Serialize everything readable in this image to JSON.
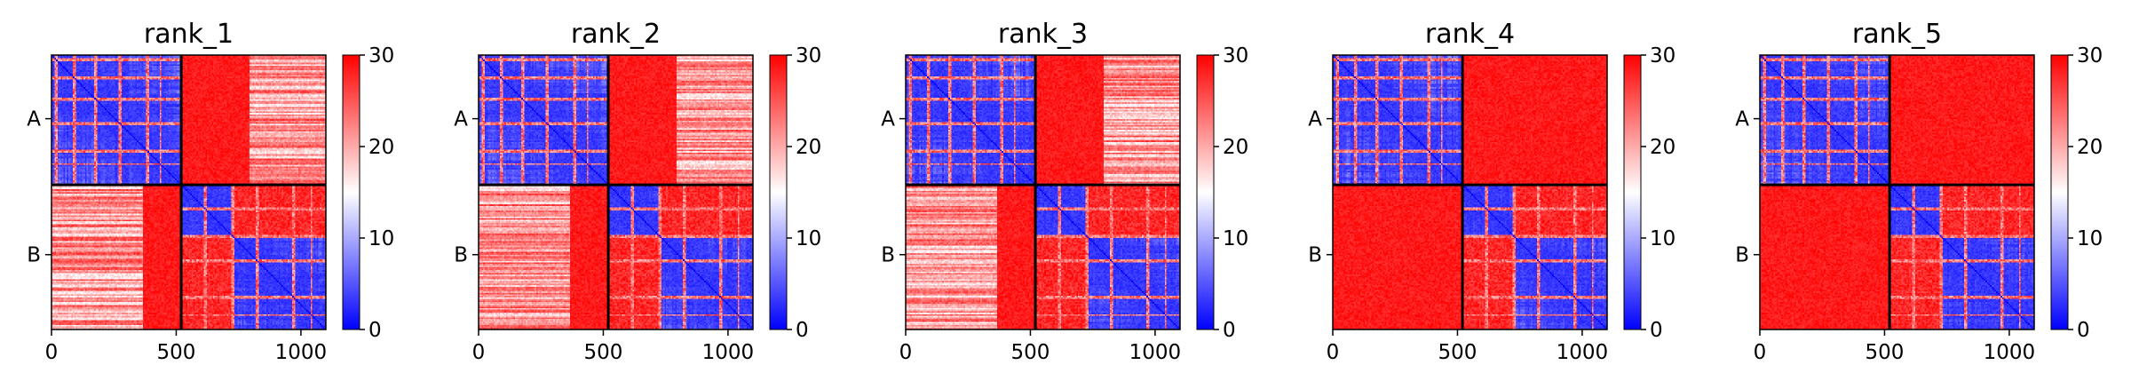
{
  "figure": {
    "colormap": {
      "low": "#0000ff",
      "mid": "#ffffff",
      "high": "#ff0000"
    }
  },
  "chart_data": [
    {
      "type": "heatmap",
      "title": "rank_1",
      "xlabel": "",
      "ylabel": "",
      "x_ticks": [
        "0",
        "500",
        "1000"
      ],
      "x_tick_values": [
        0,
        500,
        1000
      ],
      "xlim": [
        0,
        1100
      ],
      "ylim": [
        1100,
        0
      ],
      "y_tick_labels": [
        "A",
        "B"
      ],
      "y_tick_values": [
        255,
        800
      ],
      "chain_boundary": 520,
      "colorbar": {
        "min": 0,
        "max": 30,
        "ticks": [
          0,
          10,
          20,
          30
        ]
      },
      "blocks": {
        "AA": "low",
        "AB": "mostly high, mixed near residues 800-1100",
        "BA": "mostly high, mixed near residues 0-350",
        "BB": "low"
      }
    },
    {
      "type": "heatmap",
      "title": "rank_2",
      "xlabel": "",
      "ylabel": "",
      "x_ticks": [
        "0",
        "500",
        "1000"
      ],
      "x_tick_values": [
        0,
        500,
        1000
      ],
      "xlim": [
        0,
        1100
      ],
      "ylim": [
        1100,
        0
      ],
      "y_tick_labels": [
        "A",
        "B"
      ],
      "y_tick_values": [
        255,
        800
      ],
      "chain_boundary": 520,
      "colorbar": {
        "min": 0,
        "max": 30,
        "ticks": [
          0,
          10,
          20,
          30
        ]
      },
      "blocks": {
        "AA": "low",
        "AB": "mostly high, mixed near residues 800-1100",
        "BA": "mostly high, mixed near residues 0-350",
        "BB": "low"
      }
    },
    {
      "type": "heatmap",
      "title": "rank_3",
      "xlabel": "",
      "ylabel": "",
      "x_ticks": [
        "0",
        "500",
        "1000"
      ],
      "x_tick_values": [
        0,
        500,
        1000
      ],
      "xlim": [
        0,
        1100
      ],
      "ylim": [
        1100,
        0
      ],
      "y_tick_labels": [
        "A",
        "B"
      ],
      "y_tick_values": [
        255,
        800
      ],
      "chain_boundary": 520,
      "colorbar": {
        "min": 0,
        "max": 30,
        "ticks": [
          0,
          10,
          20,
          30
        ]
      },
      "blocks": {
        "AA": "low",
        "AB": "mostly high, pale near residues 800-1100",
        "BA": "mostly high, pale near residues 0-350",
        "BB": "low"
      }
    },
    {
      "type": "heatmap",
      "title": "rank_4",
      "xlabel": "",
      "ylabel": "",
      "x_ticks": [
        "0",
        "500",
        "1000"
      ],
      "x_tick_values": [
        0,
        500,
        1000
      ],
      "xlim": [
        0,
        1100
      ],
      "ylim": [
        1100,
        0
      ],
      "y_tick_labels": [
        "A",
        "B"
      ],
      "y_tick_values": [
        255,
        800
      ],
      "chain_boundary": 520,
      "colorbar": {
        "min": 0,
        "max": 30,
        "ticks": [
          0,
          10,
          20,
          30
        ]
      },
      "blocks": {
        "AA": "low",
        "AB": "high",
        "BA": "high",
        "BB": "low"
      }
    },
    {
      "type": "heatmap",
      "title": "rank_5",
      "xlabel": "",
      "ylabel": "",
      "x_ticks": [
        "0",
        "500",
        "1000"
      ],
      "x_tick_values": [
        0,
        500,
        1000
      ],
      "xlim": [
        0,
        1100
      ],
      "ylim": [
        1100,
        0
      ],
      "y_tick_labels": [
        "A",
        "B"
      ],
      "y_tick_values": [
        255,
        800
      ],
      "chain_boundary": 520,
      "colorbar": {
        "min": 0,
        "max": 30,
        "ticks": [
          0,
          10,
          20,
          30
        ]
      },
      "blocks": {
        "AA": "low",
        "AB": "high",
        "BA": "high",
        "BB": "low"
      }
    }
  ]
}
